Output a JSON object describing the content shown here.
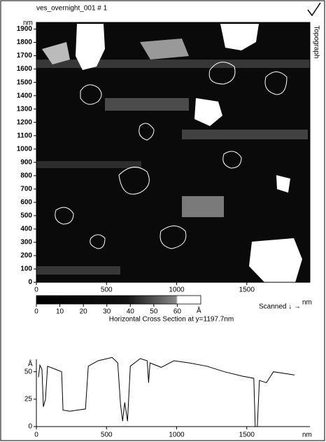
{
  "image": {
    "title": "ves_overnight_001 # 1",
    "channel": "Topograph",
    "xlim": [
      0,
      1950
    ],
    "ylim": [
      0,
      1950
    ],
    "xticks": [
      0,
      500,
      1000,
      1500
    ],
    "yticks": [
      0,
      100,
      200,
      300,
      400,
      500,
      600,
      700,
      800,
      900,
      1000,
      1100,
      1200,
      1300,
      1400,
      1500,
      1600,
      1700,
      1800,
      1900
    ],
    "x_unit": "nm",
    "y_unit": "nm"
  },
  "colorbar": {
    "lim": [
      0,
      70
    ],
    "ticks": [
      0,
      10,
      20,
      30,
      40,
      50,
      60
    ],
    "unit": "Å"
  },
  "scan_direction": "Scanned ↓ →",
  "chart_data": {
    "type": "line",
    "title": "Horizontal Cross Section at y=1197.7nm",
    "x": [
      15,
      25,
      40,
      50,
      65,
      80,
      140,
      180,
      190,
      240,
      290,
      350,
      370,
      440,
      540,
      580,
      600,
      615,
      630,
      650,
      670,
      740,
      790,
      800,
      810,
      890,
      980,
      1090,
      1215,
      1340,
      1465,
      1550,
      1560,
      1575,
      1590,
      1640,
      1690,
      1790,
      1840
    ],
    "series": [
      {
        "color": "#000000",
        "values": [
          45,
          56,
          52,
          18,
          25,
          55,
          52,
          50,
          15,
          14,
          15,
          16,
          55,
          60,
          63,
          58,
          20,
          5,
          22,
          5,
          55,
          62,
          60,
          40,
          58,
          54,
          60,
          58,
          55,
          50,
          46,
          44,
          0,
          0,
          42,
          40,
          50,
          48,
          47
        ]
      }
    ],
    "xlim": [
      0,
      1950
    ],
    "ylim": [
      0,
      60
    ],
    "xticks": [
      0,
      500,
      1000,
      1500
    ],
    "yticks": [
      0,
      25,
      50
    ],
    "x_unit": "nm",
    "y_unit": "Å"
  }
}
